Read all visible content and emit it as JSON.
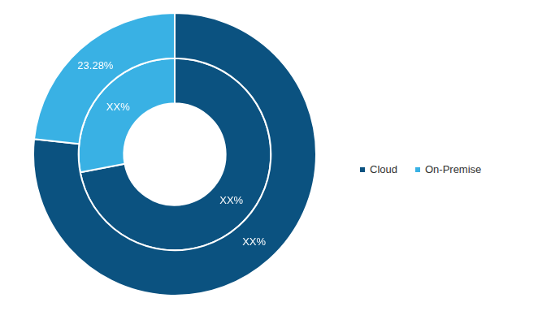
{
  "chart_data": {
    "type": "doughnut",
    "categories": [
      "Cloud",
      "On-Premise"
    ],
    "colors": [
      "#0b5280",
      "#39b1e4"
    ],
    "series": [
      {
        "values": [
          76.72,
          23.28
        ],
        "value_labels": [
          "XX%",
          "23.28%"
        ]
      },
      {
        "values": [
          72,
          28
        ],
        "value_labels": [
          "XX%",
          "XX%"
        ]
      }
    ],
    "data_labels": true,
    "legend": "right"
  }
}
